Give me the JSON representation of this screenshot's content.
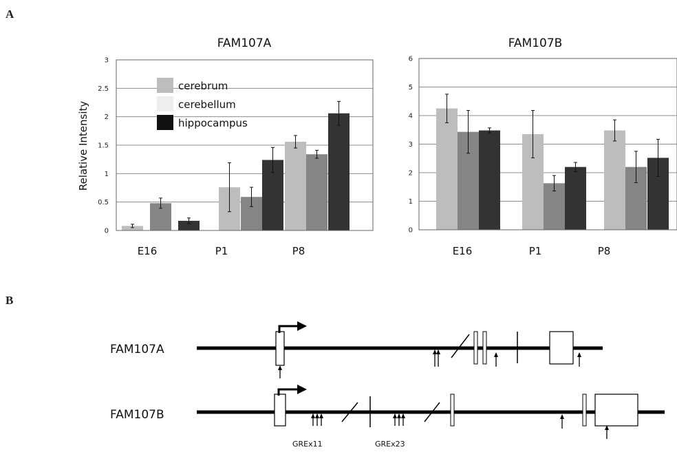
{
  "panels": {
    "a": "A",
    "b": "B"
  },
  "chart_data": [
    {
      "type": "bar",
      "title": "FAM107A",
      "ylabel": "Relative Intensity",
      "xlabel": "",
      "ylim": [
        0,
        3
      ],
      "yticks": [
        "0",
        "0.5",
        "1",
        "1.5",
        "2",
        "2.5",
        "3"
      ],
      "categories": [
        "E16",
        "P1",
        "P8"
      ],
      "grid": true,
      "legend_position": "top-left",
      "series": [
        {
          "name": "cerebrum",
          "color": "#bdbdbd",
          "values": [
            0.08,
            0.76,
            1.56
          ],
          "errors": [
            0.03,
            0.43,
            0.11
          ]
        },
        {
          "name": "cerebellum",
          "color": "#858585",
          "values": [
            0.48,
            0.59,
            1.34
          ],
          "errors": [
            0.09,
            0.17,
            0.07
          ]
        },
        {
          "name": "hippocampus",
          "color": "#333333",
          "values": [
            0.17,
            1.24,
            2.06
          ],
          "errors": [
            0.05,
            0.22,
            0.21
          ]
        }
      ]
    },
    {
      "type": "bar",
      "title": "FAM107B",
      "ylabel": "",
      "xlabel": "",
      "ylim": [
        0,
        6
      ],
      "yticks": [
        "0",
        "1",
        "2",
        "3",
        "4",
        "5",
        "6"
      ],
      "categories": [
        "E16",
        "P1",
        "P8"
      ],
      "grid": true,
      "series": [
        {
          "name": "cerebrum",
          "color": "#bdbdbd",
          "values": [
            4.25,
            3.35,
            3.48
          ],
          "errors": [
            0.5,
            0.83,
            0.37
          ]
        },
        {
          "name": "cerebellum",
          "color": "#858585",
          "values": [
            3.43,
            1.63,
            2.2
          ],
          "errors": [
            0.75,
            0.27,
            0.55
          ]
        },
        {
          "name": "hippocampus",
          "color": "#333333",
          "values": [
            3.48,
            2.2,
            2.52
          ],
          "errors": [
            0.09,
            0.16,
            0.65
          ]
        }
      ]
    }
  ],
  "diagram": {
    "genes": [
      {
        "label": "FAM107A"
      },
      {
        "label": "FAM107B"
      }
    ],
    "gre_labels": [
      "GREx11",
      "GREx23"
    ]
  }
}
